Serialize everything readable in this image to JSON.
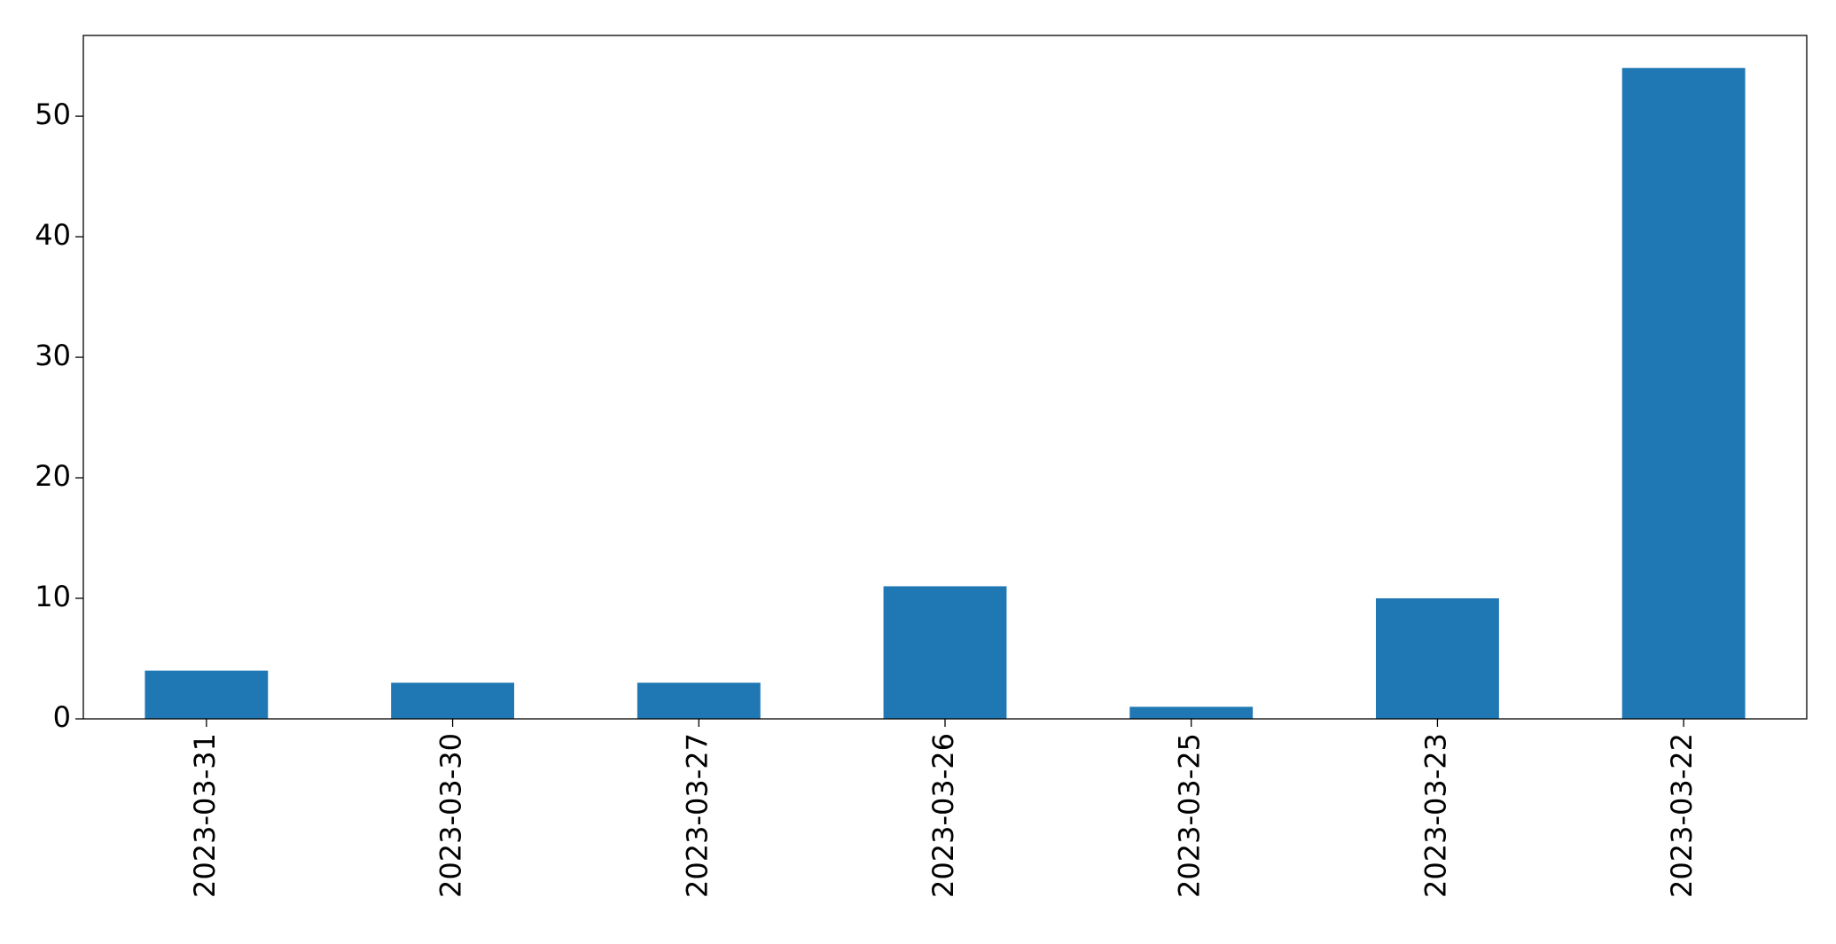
{
  "chart_data": {
    "type": "bar",
    "categories": [
      "2023-03-31",
      "2023-03-30",
      "2023-03-27",
      "2023-03-26",
      "2023-03-25",
      "2023-03-23",
      "2023-03-22"
    ],
    "values": [
      4,
      3,
      3,
      11,
      1,
      10,
      54
    ],
    "color": "#1f77b4",
    "ylim": [
      0,
      56.7
    ],
    "yticks": [
      0,
      10,
      20,
      30,
      40,
      50
    ],
    "grid": false
  }
}
